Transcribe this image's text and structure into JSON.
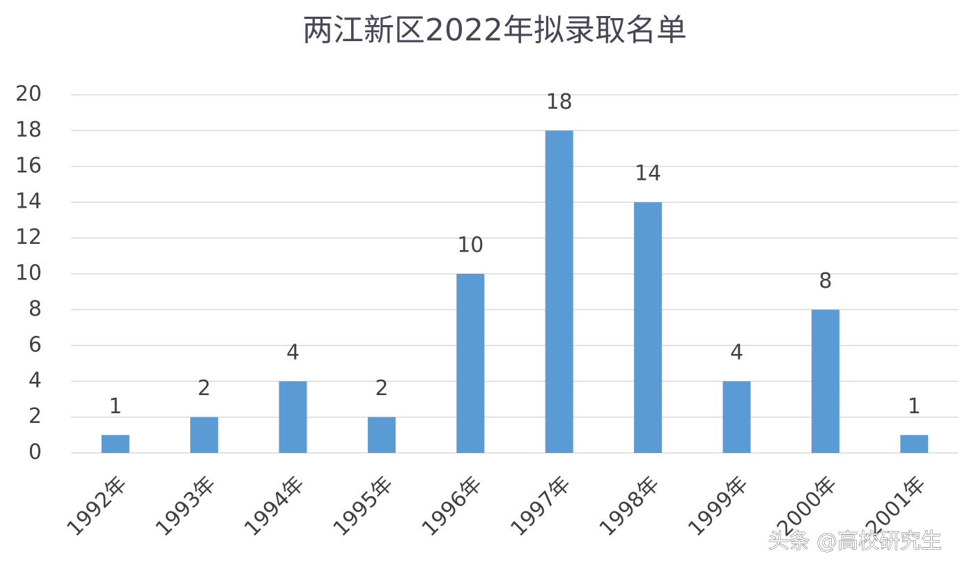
{
  "chart_data": {
    "type": "bar",
    "title": "两江新区2022年拟录取名单",
    "categories": [
      "1992年",
      "1993年",
      "1994年",
      "1995年",
      "1996年",
      "1997年",
      "1998年",
      "1999年",
      "2000年",
      "2001年"
    ],
    "values": [
      1,
      2,
      4,
      2,
      10,
      18,
      14,
      4,
      8,
      1
    ],
    "color": "#5b9bd5",
    "ylim": [
      0,
      20
    ],
    "yticks": [
      0,
      2,
      4,
      6,
      8,
      10,
      12,
      14,
      16,
      18,
      20
    ],
    "grid": true,
    "annotation": "头条 @高校研究生"
  }
}
